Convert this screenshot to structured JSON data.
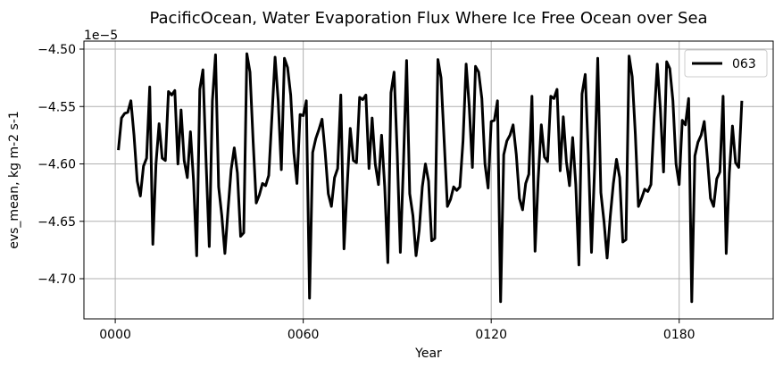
{
  "chart_data": {
    "type": "line",
    "title": "PacificOcean, Water Evaporation Flux Where Ice Free Ocean over Sea",
    "xlabel": "Year",
    "ylabel": "evs_mean, kg m-2 s-1",
    "offset_label": "1e−5",
    "xlim": [
      -10,
      210
    ],
    "ylim": [
      -4.735,
      -4.493
    ],
    "x_ticks": [
      0,
      60,
      120,
      180
    ],
    "x_tick_labels": [
      "0000",
      "0060",
      "0120",
      "0180"
    ],
    "y_ticks": [
      -4.7,
      -4.65,
      -4.6,
      -4.55,
      -4.5
    ],
    "y_tick_labels": [
      "−4.70",
      "−4.65",
      "−4.60",
      "−4.55",
      "−4.50"
    ],
    "grid": true,
    "legend_position": "top-right",
    "series": [
      {
        "name": "063",
        "color": "#000000",
        "x": [
          1,
          2,
          3,
          4,
          5,
          6,
          7,
          8,
          9,
          10,
          11,
          12,
          13,
          14,
          15,
          16,
          17,
          18,
          19,
          20,
          21,
          22,
          23,
          24,
          25,
          26,
          27,
          28,
          29,
          30,
          31,
          32,
          33,
          34,
          35,
          36,
          37,
          38,
          39,
          40,
          41,
          42,
          43,
          44,
          45,
          46,
          47,
          48,
          49,
          50,
          51,
          52,
          53,
          54,
          55,
          56,
          57,
          58,
          59,
          60,
          61,
          62,
          63,
          64,
          65,
          66,
          67,
          68,
          69,
          70,
          71,
          72,
          73,
          74,
          75,
          76,
          77,
          78,
          79,
          80,
          81,
          82,
          83,
          84,
          85,
          86,
          87,
          88,
          89,
          90,
          91,
          92,
          93,
          94,
          95,
          96,
          97,
          98,
          99,
          100,
          101,
          102,
          103,
          104,
          105,
          106,
          107,
          108,
          109,
          110,
          111,
          112,
          113,
          114,
          115,
          116,
          117,
          118,
          119,
          120,
          121,
          122,
          123,
          124,
          125,
          126,
          127,
          128,
          129,
          130,
          131,
          132,
          133,
          134,
          135,
          136,
          137,
          138,
          139,
          140,
          141,
          142,
          143,
          144,
          145,
          146,
          147,
          148,
          149,
          150,
          151,
          152,
          153,
          154,
          155,
          156,
          157,
          158,
          159,
          160,
          161,
          162,
          163,
          164,
          165,
          166,
          167,
          168,
          169,
          170,
          171,
          172,
          173,
          174,
          175,
          176,
          177,
          178,
          179,
          180,
          181,
          182,
          183,
          184,
          185,
          186,
          187,
          188,
          189,
          190,
          191,
          192,
          193,
          194,
          195,
          196,
          197,
          198,
          199,
          200
        ],
        "y": [
          -4.588,
          -4.56,
          -4.556,
          -4.555,
          -4.545,
          -4.575,
          -4.615,
          -4.628,
          -4.602,
          -4.595,
          -4.533,
          -4.67,
          -4.6,
          -4.565,
          -4.595,
          -4.597,
          -4.537,
          -4.54,
          -4.536,
          -4.6,
          -4.553,
          -4.597,
          -4.612,
          -4.572,
          -4.615,
          -4.68,
          -4.535,
          -4.518,
          -4.6,
          -4.672,
          -4.545,
          -4.505,
          -4.62,
          -4.645,
          -4.678,
          -4.64,
          -4.605,
          -4.586,
          -4.608,
          -4.663,
          -4.66,
          -4.504,
          -4.52,
          -4.58,
          -4.634,
          -4.627,
          -4.617,
          -4.619,
          -4.61,
          -4.56,
          -4.507,
          -4.545,
          -4.605,
          -4.508,
          -4.516,
          -4.54,
          -4.59,
          -4.617,
          -4.557,
          -4.558,
          -4.545,
          -4.717,
          -4.59,
          -4.578,
          -4.57,
          -4.561,
          -4.59,
          -4.626,
          -4.637,
          -4.612,
          -4.604,
          -4.54,
          -4.674,
          -4.62,
          -4.569,
          -4.597,
          -4.599,
          -4.542,
          -4.544,
          -4.54,
          -4.604,
          -4.56,
          -4.6,
          -4.618,
          -4.575,
          -4.62,
          -4.686,
          -4.538,
          -4.52,
          -4.59,
          -4.677,
          -4.6,
          -4.51,
          -4.626,
          -4.645,
          -4.68,
          -4.658,
          -4.62,
          -4.6,
          -4.615,
          -4.667,
          -4.665,
          -4.509,
          -4.525,
          -4.58,
          -4.637,
          -4.631,
          -4.62,
          -4.623,
          -4.62,
          -4.58,
          -4.513,
          -4.55,
          -4.603,
          -4.515,
          -4.52,
          -4.543,
          -4.6,
          -4.621,
          -4.563,
          -4.562,
          -4.545,
          -4.72,
          -4.592,
          -4.58,
          -4.575,
          -4.566,
          -4.592,
          -4.63,
          -4.64,
          -4.617,
          -4.609,
          -4.541,
          -4.676,
          -4.613,
          -4.566,
          -4.594,
          -4.598,
          -4.541,
          -4.543,
          -4.535,
          -4.606,
          -4.559,
          -4.598,
          -4.619,
          -4.577,
          -4.618,
          -4.688,
          -4.539,
          -4.522,
          -4.593,
          -4.677,
          -4.604,
          -4.508,
          -4.625,
          -4.65,
          -4.682,
          -4.646,
          -4.617,
          -4.596,
          -4.612,
          -4.668,
          -4.666,
          -4.506,
          -4.524,
          -4.574,
          -4.637,
          -4.63,
          -4.622,
          -4.624,
          -4.618,
          -4.56,
          -4.513,
          -4.553,
          -4.607,
          -4.511,
          -4.517,
          -4.545,
          -4.6,
          -4.618,
          -4.562,
          -4.566,
          -4.543,
          -4.72,
          -4.593,
          -4.581,
          -4.575,
          -4.563,
          -4.595,
          -4.63,
          -4.637,
          -4.613,
          -4.607,
          -4.541,
          -4.678,
          -4.608,
          -4.567,
          -4.599,
          -4.603,
          -4.545
        ]
      }
    ]
  }
}
